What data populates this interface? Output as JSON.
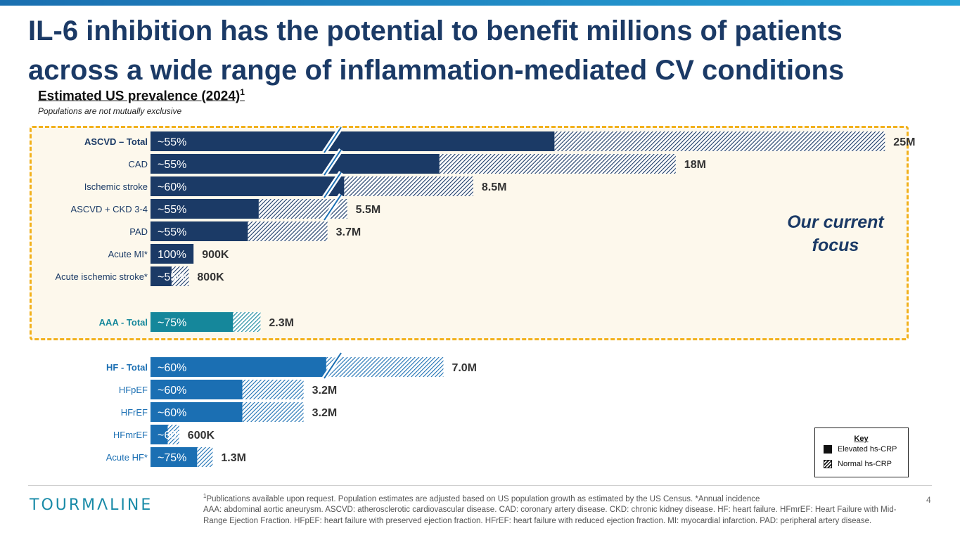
{
  "slide": {
    "title_line1": "IL-6 inhibition has the potential to benefit millions of patients",
    "title_line2": "across a wide range of inflammation-mediated CV conditions",
    "subtitle": "Estimated US prevalence (2024)",
    "subtitle_sup": "1",
    "subnote": "Populations are not mutually exclusive",
    "focus_label_line1": "Our current",
    "focus_label_line2": "focus",
    "page_number": "4",
    "logo": "TOURMΛLINE",
    "footnote_sup": "1",
    "footnote_line1": "Publications available upon request. Population estimates are adjusted based on US population growth as estimated by the US Census. *Annual incidence",
    "footnote_line2": "AAA: abdominal aortic aneurysm. ASCVD: atherosclerotic cardiovascular disease. CAD: coronary artery disease. CKD: chronic kidney disease. HF: heart failure. HFmrEF: Heart Failure with Mid-Range Ejection Fraction. HFpEF: heart failure with preserved ejection fraction. HFrEF: heart failure with reduced ejection fraction. MI: myocardial infarction. PAD: peripheral artery disease."
  },
  "key": {
    "title": "Key",
    "elevated": "Elevated hs-CRP",
    "normal": "Normal hs-CRP"
  },
  "colors": {
    "ascvd": "#1b3a66",
    "aaa": "#15879b",
    "hf": "#1b6fb3",
    "focus_border": "#f2b11c",
    "focus_bg": "#fdf8ec"
  },
  "chart_data": {
    "type": "bar",
    "orientation": "horizontal",
    "stacked": true,
    "axis_break": "shown on largest bars",
    "series": [
      {
        "name": "Elevated hs-CRP"
      },
      {
        "name": "Normal hs-CRP"
      }
    ],
    "rows": [
      {
        "label": "ASCVD – Total",
        "group": "ascvd",
        "bold": true,
        "elevated_label": "~55%",
        "total_label": "25M",
        "value": 25.0,
        "elevated_fraction": 0.55,
        "axis_break": true
      },
      {
        "label": "CAD",
        "group": "ascvd",
        "bold": false,
        "elevated_label": "~55%",
        "total_label": "18M",
        "value": 18.0,
        "elevated_fraction": 0.55,
        "axis_break": true
      },
      {
        "label": "Ischemic stroke",
        "group": "ascvd",
        "bold": false,
        "elevated_label": "~60%",
        "total_label": "8.5M",
        "value": 8.5,
        "elevated_fraction": 0.6,
        "axis_break": true
      },
      {
        "label": "ASCVD + CKD 3-4",
        "group": "ascvd",
        "bold": false,
        "elevated_label": "~55%",
        "total_label": "5.5M",
        "value": 5.5,
        "elevated_fraction": 0.55,
        "axis_break": true
      },
      {
        "label": "PAD",
        "group": "ascvd",
        "bold": false,
        "elevated_label": "~55%",
        "total_label": "3.7M",
        "value": 3.7,
        "elevated_fraction": 0.55,
        "axis_break": false
      },
      {
        "label": "Acute MI*",
        "group": "ascvd",
        "bold": false,
        "elevated_label": "100%",
        "total_label": "900K",
        "value": 0.9,
        "elevated_fraction": 1.0,
        "axis_break": false
      },
      {
        "label": "Acute ischemic stroke*",
        "group": "ascvd",
        "bold": false,
        "elevated_label": "~55%",
        "total_label": "800K",
        "value": 0.8,
        "elevated_fraction": 0.55,
        "axis_break": false
      },
      {
        "label": "AAA - Total",
        "group": "aaa",
        "bold": true,
        "elevated_label": "~75%",
        "total_label": "2.3M",
        "value": 2.3,
        "elevated_fraction": 0.75,
        "axis_break": false
      },
      {
        "label": "HF - Total",
        "group": "hf",
        "bold": true,
        "elevated_label": "~60%",
        "total_label": "7.0M",
        "value": 7.0,
        "elevated_fraction": 0.6,
        "axis_break": true
      },
      {
        "label": "HFpEF",
        "group": "hf",
        "bold": false,
        "elevated_label": "~60%",
        "total_label": "3.2M",
        "value": 3.2,
        "elevated_fraction": 0.6,
        "axis_break": false
      },
      {
        "label": "HFrEF",
        "group": "hf",
        "bold": false,
        "elevated_label": "~60%",
        "total_label": "3.2M",
        "value": 3.2,
        "elevated_fraction": 0.6,
        "axis_break": false
      },
      {
        "label": "HFmrEF",
        "group": "hf",
        "bold": false,
        "elevated_label": "~60%",
        "total_label": "600K",
        "value": 0.6,
        "elevated_fraction": 0.6,
        "axis_break": false
      },
      {
        "label": "Acute HF*",
        "group": "hf",
        "bold": false,
        "elevated_label": "~75%",
        "total_label": "1.3M",
        "value": 1.3,
        "elevated_fraction": 0.75,
        "axis_break": false
      }
    ]
  }
}
